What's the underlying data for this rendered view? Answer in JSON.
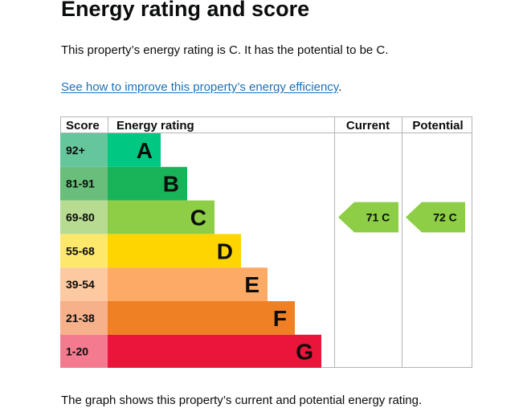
{
  "page": {
    "title": "Energy rating and score",
    "intro": "This property’s energy rating is C. It has the potential to be C.",
    "improve_link": "See how to improve this property’s energy efficiency",
    "improve_link_suffix": ".",
    "footer": "The graph shows this property’s current and potential energy rating."
  },
  "chart_data": {
    "type": "table",
    "headers": {
      "score": "Score",
      "rating": "Energy rating",
      "current": "Current",
      "potential": "Potential"
    },
    "bands": [
      {
        "score": "92+",
        "letter": "A",
        "color": "#66c69b",
        "bar_color": "#00c781",
        "rank": 1
      },
      {
        "score": "81-91",
        "letter": "B",
        "color": "#69be7b",
        "bar_color": "#19b459",
        "rank": 2
      },
      {
        "score": "69-80",
        "letter": "C",
        "color": "#b7dc91",
        "bar_color": "#8dce46",
        "rank": 3
      },
      {
        "score": "55-68",
        "letter": "D",
        "color": "#fde86b",
        "bar_color": "#ffd500",
        "rank": 4
      },
      {
        "score": "39-54",
        "letter": "E",
        "color": "#fcc9a1",
        "bar_color": "#fcaa65",
        "rank": 5
      },
      {
        "score": "21-38",
        "letter": "F",
        "color": "#f6b08a",
        "bar_color": "#ef8023",
        "rank": 6
      },
      {
        "score": "1-20",
        "letter": "G",
        "color": "#f47a8f",
        "bar_color": "#e9153b",
        "rank": 7
      }
    ],
    "current": {
      "value": 71,
      "letter": "C",
      "label": "71  C",
      "color": "#8dce46"
    },
    "potential": {
      "value": 72,
      "letter": "C",
      "label": "72  C",
      "color": "#8dce46"
    }
  }
}
